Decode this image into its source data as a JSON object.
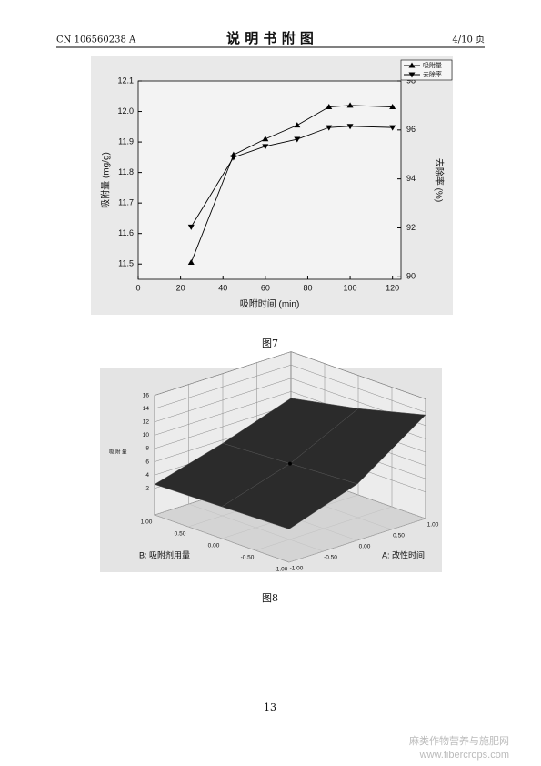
{
  "header": {
    "left": "CN 106560238 A",
    "title": "说 明 书 附 图",
    "right": "4/10 页"
  },
  "figures": [
    {
      "caption": "图7",
      "chart": {
        "type": "line",
        "x_label": "吸附时间 (min)",
        "y_label": "吸附量 (mg/g)",
        "y2_label": "去除率 (%)",
        "x": [
          25,
          45,
          60,
          75,
          90,
          100,
          120
        ],
        "xlim": [
          0,
          124
        ],
        "xticks": [
          0,
          20,
          40,
          60,
          80,
          100,
          120
        ],
        "ylim": [
          11.45,
          12.1
        ],
        "yticks": [
          11.5,
          11.6,
          11.7,
          11.8,
          11.9,
          {
            "value": 12,
            "label": "12.0"
          },
          12.1
        ],
        "y2lim": [
          89.9,
          98
        ],
        "y2ticks": [
          90,
          92,
          94,
          96,
          98
        ],
        "legend": "upper right",
        "series": [
          {
            "name": "吸附量",
            "color": "#000000",
            "marker": "^",
            "values": [
              11.505,
              11.858,
              11.91,
              11.955,
              12.015,
              12.02,
              12.015
            ]
          },
          {
            "name": "去除率",
            "color": "#000000",
            "marker": "v",
            "axis": "y2",
            "values": [
              92.04,
              94.88,
              95.33,
              95.62,
              96.1,
              96.15,
              96.1
            ]
          }
        ]
      }
    },
    {
      "caption": "图8",
      "chart": {
        "type": "surface",
        "x_label": "A: 改性时间",
        "y_label": "B: 吸附剂用量",
        "z_label": "吸 附 量",
        "x": [
          -1,
          0,
          1
        ],
        "y": [
          -1,
          0,
          1
        ],
        "xlim": [
          -1,
          1
        ],
        "ylim": [
          -1,
          1
        ],
        "zlim": [
          -2,
          16
        ],
        "xticks": [
          {
            "value": -1,
            "label": "-1.00"
          },
          {
            "value": -0.5,
            "label": "-0.50"
          },
          {
            "value": 0,
            "label": "0.00"
          },
          {
            "value": 0.5,
            "label": "0.50"
          },
          {
            "value": 1,
            "label": "1.00"
          }
        ],
        "yticks": [
          {
            "value": -1,
            "label": "-1.00"
          },
          {
            "value": -0.5,
            "label": "-0.50"
          },
          {
            "value": 0,
            "label": "0.00"
          },
          {
            "value": 0.5,
            "label": "0.50"
          },
          {
            "value": 1,
            "label": "1.00"
          }
        ],
        "zticks": [
          2,
          4,
          6,
          8,
          10,
          12,
          14,
          16
        ],
        "z": [
          [
            3.0,
            2.8,
            2.6
          ],
          [
            6.5,
            6.0,
            5.5
          ],
          [
            13.6,
            11.0,
            9.0
          ]
        ]
      }
    }
  ],
  "page_number": "13",
  "watermark": [
    "麻类作物营养与施肥网",
    "www.fibercrops.com"
  ]
}
